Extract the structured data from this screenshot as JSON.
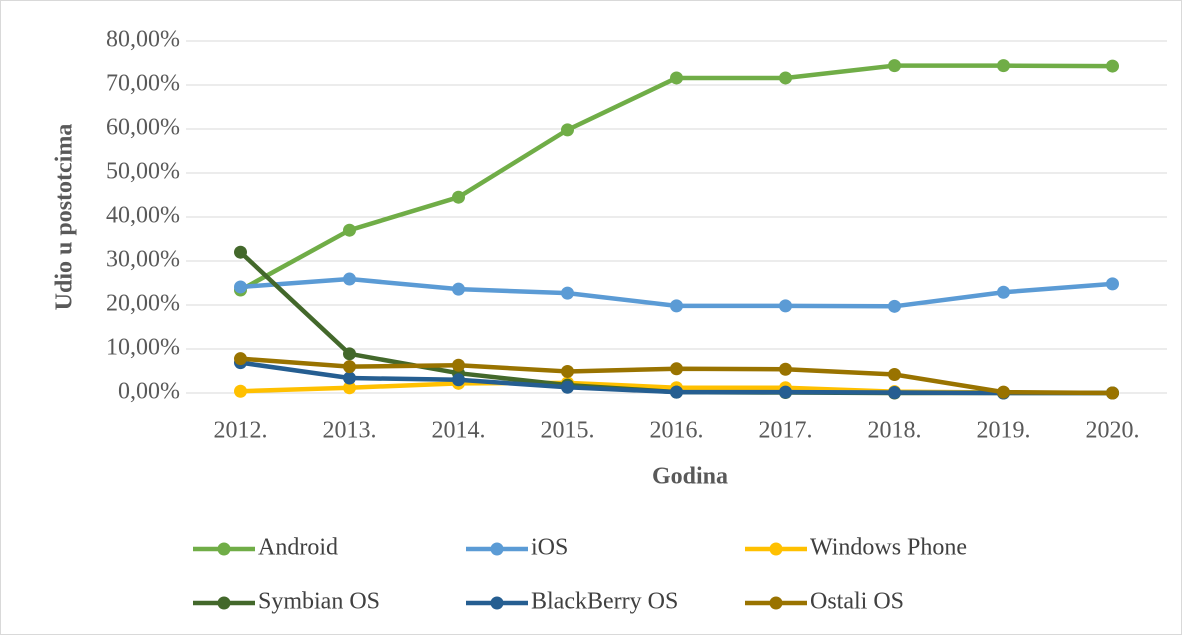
{
  "chart_data": {
    "type": "line",
    "x_label": "Godina",
    "y_label": "Udio u postotcima",
    "categories": [
      "2012.",
      "2013.",
      "2014.",
      "2015.",
      "2016.",
      "2017.",
      "2018.",
      "2019.",
      "2020."
    ],
    "series": [
      {
        "name": "Android",
        "color": "#70ad47",
        "values": [
          23.4,
          37.0,
          44.5,
          59.8,
          71.6,
          71.6,
          74.4,
          74.4,
          74.3
        ]
      },
      {
        "name": "iOS",
        "color": "#5b9bd5",
        "values": [
          24.1,
          25.9,
          23.6,
          22.7,
          19.8,
          19.8,
          19.7,
          22.9,
          24.8
        ]
      },
      {
        "name": "Windows Phone",
        "color": "#ffc000",
        "values": [
          0.4,
          1.2,
          2.2,
          2.3,
          1.2,
          1.2,
          0.3,
          0.1,
          0
        ]
      },
      {
        "name": "Symbian OS",
        "color": "#43682b",
        "values": [
          32.0,
          8.9,
          4.5,
          1.8,
          0.2,
          0.1,
          0,
          0,
          0
        ]
      },
      {
        "name": "BlackBerry OS",
        "color": "#255e91",
        "values": [
          6.9,
          3.4,
          3.0,
          1.3,
          0.2,
          0.2,
          0.1,
          0,
          0
        ]
      },
      {
        "name": "Ostali OS",
        "color": "#997300",
        "values": [
          7.8,
          6.0,
          6.3,
          4.9,
          5.5,
          5.4,
          4.2,
          0.2,
          0
        ]
      }
    ],
    "ylim": [
      0,
      80
    ],
    "yticks": [
      {
        "value": 0,
        "label": "0,00%"
      },
      {
        "value": 10,
        "label": "10,00%"
      },
      {
        "value": 20,
        "label": "20,00%"
      },
      {
        "value": 30,
        "label": "30,00%"
      },
      {
        "value": 40,
        "label": "40,00%"
      },
      {
        "value": 50,
        "label": "50,00%"
      },
      {
        "value": 60,
        "label": "60,00%"
      },
      {
        "value": 70,
        "label": "70,00%"
      },
      {
        "value": 80,
        "label": "80,00%"
      }
    ],
    "grid": true
  }
}
